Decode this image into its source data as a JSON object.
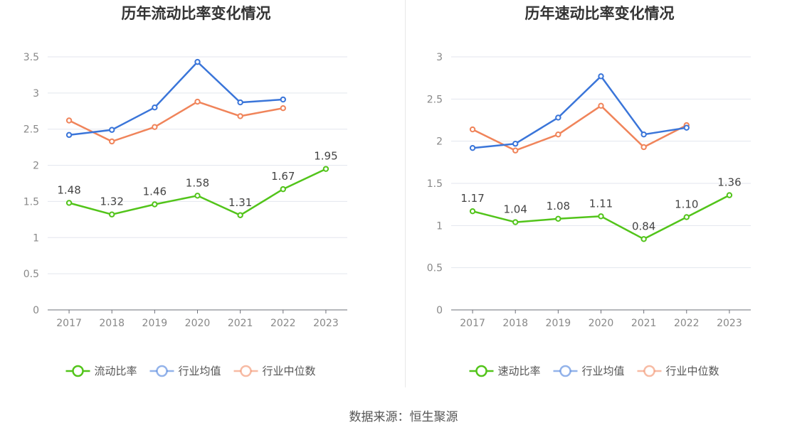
{
  "footer": {
    "source": "数据来源：恒生聚源"
  },
  "chart_data": [
    {
      "type": "line",
      "title": "历年流动比率变化情况",
      "categories": [
        "2017",
        "2018",
        "2019",
        "2020",
        "2021",
        "2022",
        "2023"
      ],
      "ylim": [
        0,
        3.5
      ],
      "yticks": [
        "0",
        "0.5",
        "1",
        "1.5",
        "2",
        "2.5",
        "3",
        "3.5"
      ],
      "grid": true,
      "legend_position": "bottom",
      "series": [
        {
          "name": "流动比率",
          "color": "#52c41a",
          "values": [
            1.48,
            1.32,
            1.46,
            1.58,
            1.31,
            1.67,
            1.95
          ],
          "labels": [
            "1.48",
            "1.32",
            "1.46",
            "1.58",
            "1.31",
            "1.67",
            "1.95"
          ]
        },
        {
          "name": "行业均值",
          "color": "#3a75d9",
          "values": [
            2.42,
            2.49,
            2.8,
            3.43,
            2.87,
            2.91,
            null
          ]
        },
        {
          "name": "行业中位数",
          "color": "#f0845a",
          "values": [
            2.62,
            2.33,
            2.53,
            2.88,
            2.68,
            2.79,
            null
          ]
        }
      ]
    },
    {
      "type": "line",
      "title": "历年速动比率变化情况",
      "categories": [
        "2017",
        "2018",
        "2019",
        "2020",
        "2021",
        "2022",
        "2023"
      ],
      "ylim": [
        0,
        3
      ],
      "yticks": [
        "0",
        "0.5",
        "1",
        "1.5",
        "2",
        "2.5",
        "3"
      ],
      "grid": true,
      "legend_position": "bottom",
      "series": [
        {
          "name": "速动比率",
          "color": "#52c41a",
          "values": [
            1.17,
            1.04,
            1.08,
            1.11,
            0.84,
            1.1,
            1.36
          ],
          "labels": [
            "1.17",
            "1.04",
            "1.08",
            "1.11",
            "0.84",
            "1.10",
            "1.36"
          ]
        },
        {
          "name": "行业均值",
          "color": "#3a75d9",
          "values": [
            1.92,
            1.97,
            2.28,
            2.77,
            2.08,
            2.16,
            null
          ]
        },
        {
          "name": "行业中位数",
          "color": "#f0845a",
          "values": [
            2.14,
            1.89,
            2.08,
            2.42,
            1.93,
            2.19,
            null
          ]
        }
      ]
    }
  ]
}
